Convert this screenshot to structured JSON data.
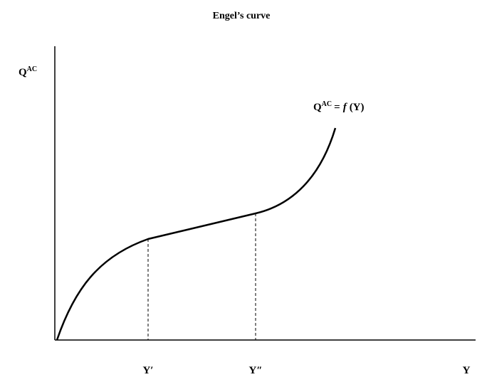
{
  "title": "Engel’s curve",
  "y_axis_label": {
    "base": "Q",
    "sup": "AC"
  },
  "x_axis_label": "Y",
  "ticks": [
    "Y′",
    "Y″"
  ],
  "curve_label": {
    "base": "Q",
    "sup": "AC",
    "eq": "=",
    "func": "f",
    "arg": "(Y)"
  }
}
